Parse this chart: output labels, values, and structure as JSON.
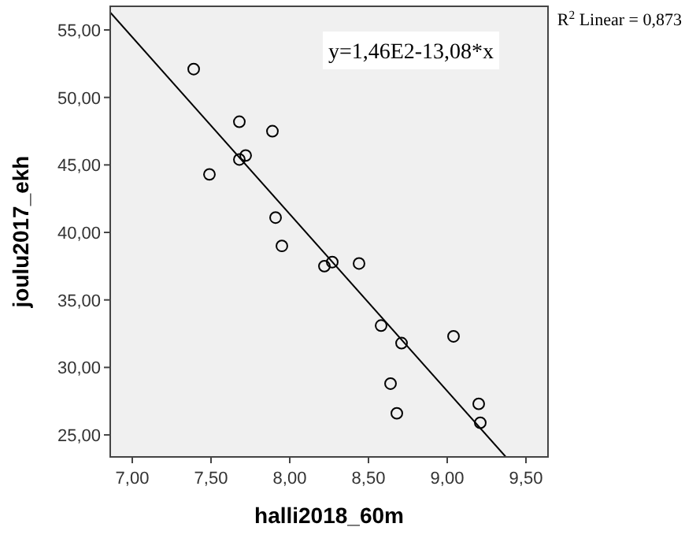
{
  "chart_data": {
    "type": "scatter",
    "xlabel": "halli2018_60m",
    "ylabel": "joulu2017_ekh",
    "xlim": [
      6.86,
      9.64
    ],
    "ylim": [
      23.37,
      56.75
    ],
    "xticks": [
      {
        "value": 7,
        "label": "7,00"
      },
      {
        "value": 7.5,
        "label": "7,50"
      },
      {
        "value": 8,
        "label": "8,00"
      },
      {
        "value": 8.5,
        "label": "8,50"
      },
      {
        "value": 9,
        "label": "9,00"
      },
      {
        "value": 9.5,
        "label": "9,50"
      }
    ],
    "yticks": [
      {
        "value": 25,
        "label": "25,00"
      },
      {
        "value": 30,
        "label": "30,00"
      },
      {
        "value": 35,
        "label": "35,00"
      },
      {
        "value": 40,
        "label": "40,00"
      },
      {
        "value": 45,
        "label": "45,00"
      },
      {
        "value": 50,
        "label": "50,00"
      },
      {
        "value": 55,
        "label": "55,00"
      }
    ],
    "grid": false,
    "series": [
      {
        "marker": "circle",
        "color": "#000000",
        "x": [
          7.39,
          7.68,
          7.89,
          7.49,
          7.68,
          7.72,
          7.91,
          7.95,
          8.22,
          8.27,
          8.44,
          8.58,
          8.71,
          9.04,
          8.64,
          8.68,
          9.2,
          9.21
        ],
        "values": [
          52.1,
          48.2,
          47.5,
          44.3,
          45.4,
          45.7,
          41.1,
          39.0,
          37.5,
          37.8,
          37.7,
          33.1,
          31.8,
          32.3,
          28.8,
          26.6,
          27.3,
          25.9
        ]
      },
      {
        "type": "line",
        "color": "#000000",
        "x": [
          6.86,
          9.37
        ],
        "values": [
          56.3,
          23.4
        ]
      }
    ],
    "annotations": [
      "y=1,46E2-13,08*x",
      "R$^{2}$ Linear = 0,873"
    ]
  }
}
